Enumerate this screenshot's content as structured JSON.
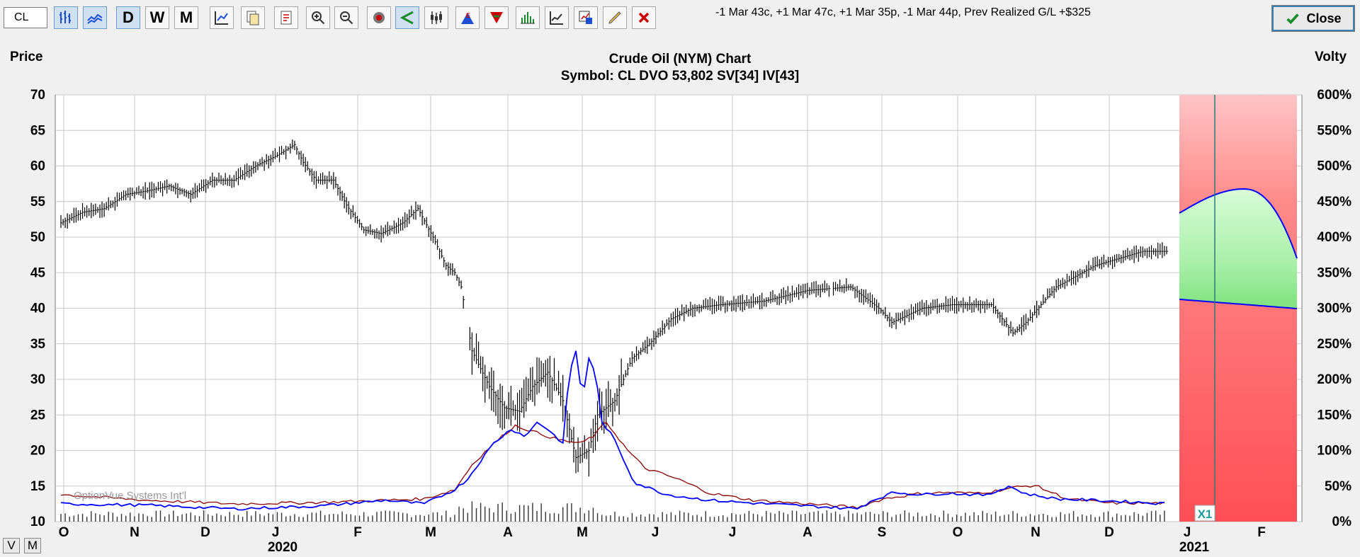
{
  "toolbar": {
    "symbol_value": "CL",
    "period_buttons": [
      "D",
      "W",
      "M"
    ],
    "status_text": "-1 Mar 43c, +1 Mar 47c, +1 Mar 35p, -1 Mar 44p, Prev Realized G/L +$325",
    "close_label": "Close",
    "icons": [
      "bar-chart-icon",
      "line-chart-icon",
      "daily-button",
      "weekly-button",
      "monthly-button",
      "chart-settings-icon",
      "copy-icon",
      "print-icon",
      "zoom-in-icon",
      "zoom-out-icon",
      "target-icon",
      "angle-icon",
      "candlestick-icon",
      "earnings-icon",
      "dividend-icon",
      "volume-icon",
      "indicator-icon",
      "analysis-icon",
      "pencil-icon",
      "delete-icon"
    ]
  },
  "chart": {
    "left_axis_title": "Price",
    "right_axis_title": "Volty",
    "title": "Crude Oil (NYM) Chart",
    "subtitle": "Symbol: CL  DVO 53,802  SV[34]  IV[43]",
    "watermark": "OptionVue Systems Int'l",
    "expiry_marker": "X1",
    "year_labels": [
      "2020",
      "2021"
    ],
    "colors": {
      "price": "#000000",
      "sv": "#0000ff",
      "iv": "#8b0000",
      "profit": "#b8f2b8",
      "loss": "#ff6b6b",
      "band": "#ffc8c8"
    }
  },
  "chart_data": {
    "type": "bar",
    "price_axis": {
      "ticks": [
        70,
        65,
        60,
        55,
        50,
        45,
        40,
        35,
        30,
        25,
        20,
        15,
        10
      ],
      "ylim": [
        10,
        70
      ]
    },
    "volty_axis": {
      "ticks": [
        "600%",
        "550%",
        "500%",
        "450%",
        "400%",
        "350%",
        "300%",
        "250%",
        "200%",
        "150%",
        "100%",
        "50%",
        "0%"
      ],
      "ylim": [
        0,
        600
      ]
    },
    "month_labels": [
      "O",
      "N",
      "D",
      "J",
      "F",
      "M",
      "A",
      "M",
      "J",
      "J",
      "A",
      "S",
      "O",
      "N",
      "D",
      "J",
      "F"
    ],
    "price_anchors": [
      [
        0,
        52
      ],
      [
        10,
        53.5
      ],
      [
        20,
        54
      ],
      [
        30,
        56
      ],
      [
        40,
        56.5
      ],
      [
        50,
        57.2
      ],
      [
        60,
        56
      ],
      [
        70,
        58
      ],
      [
        80,
        58
      ],
      [
        90,
        60
      ],
      [
        100,
        61.5
      ],
      [
        108,
        63
      ],
      [
        112,
        60.5
      ],
      [
        118,
        58
      ],
      [
        126,
        58
      ],
      [
        132,
        54.5
      ],
      [
        140,
        51
      ],
      [
        148,
        50.5
      ],
      [
        158,
        52
      ],
      [
        165,
        54
      ],
      [
        172,
        50
      ],
      [
        178,
        46
      ],
      [
        182,
        45
      ],
      [
        185,
        43
      ],
      [
        190,
        34
      ],
      [
        198,
        29
      ],
      [
        205,
        26
      ],
      [
        212,
        25.5
      ],
      [
        218,
        29
      ],
      [
        225,
        31
      ],
      [
        232,
        27
      ],
      [
        238,
        19
      ],
      [
        244,
        20
      ],
      [
        248,
        25
      ],
      [
        256,
        27
      ],
      [
        264,
        33
      ],
      [
        272,
        35
      ],
      [
        282,
        38.5
      ],
      [
        292,
        40
      ],
      [
        305,
        40.5
      ],
      [
        325,
        41
      ],
      [
        345,
        42.5
      ],
      [
        365,
        43
      ],
      [
        378,
        40
      ],
      [
        384,
        38
      ],
      [
        398,
        40
      ],
      [
        412,
        40.5
      ],
      [
        430,
        40.5
      ],
      [
        440,
        36.5
      ],
      [
        446,
        38
      ],
      [
        460,
        43
      ],
      [
        478,
        46
      ],
      [
        500,
        48
      ],
      [
        512,
        48
      ]
    ],
    "sv_anchors": [
      [
        0,
        12.5
      ],
      [
        40,
        12.3
      ],
      [
        80,
        11.8
      ],
      [
        120,
        12.2
      ],
      [
        150,
        13
      ],
      [
        168,
        12.5
      ],
      [
        182,
        14.5
      ],
      [
        188,
        16
      ],
      [
        195,
        19
      ],
      [
        200,
        21
      ],
      [
        208,
        23
      ],
      [
        215,
        22
      ],
      [
        220,
        24
      ],
      [
        225,
        23
      ],
      [
        232,
        21
      ],
      [
        235,
        31
      ],
      [
        238,
        34
      ],
      [
        241,
        27
      ],
      [
        244,
        33
      ],
      [
        247,
        31
      ],
      [
        250,
        24
      ],
      [
        255,
        22
      ],
      [
        265,
        15.5
      ],
      [
        280,
        13.8
      ],
      [
        300,
        13
      ],
      [
        320,
        12.6
      ],
      [
        345,
        12.2
      ],
      [
        368,
        11.8
      ],
      [
        375,
        13
      ],
      [
        385,
        14.1
      ],
      [
        398,
        13.8
      ],
      [
        410,
        14
      ],
      [
        428,
        13.7
      ],
      [
        438,
        15
      ],
      [
        446,
        13.9
      ],
      [
        460,
        13.2
      ],
      [
        478,
        13
      ],
      [
        500,
        12.7
      ],
      [
        512,
        12.5
      ]
    ],
    "iv_anchors": [
      [
        0,
        13.8
      ],
      [
        40,
        13
      ],
      [
        80,
        12.5
      ],
      [
        120,
        12.7
      ],
      [
        150,
        13
      ],
      [
        168,
        13.2
      ],
      [
        182,
        14.5
      ],
      [
        190,
        18
      ],
      [
        200,
        21
      ],
      [
        210,
        23.5
      ],
      [
        220,
        22.5
      ],
      [
        230,
        21.5
      ],
      [
        240,
        21
      ],
      [
        246,
        22
      ],
      [
        252,
        24
      ],
      [
        262,
        20
      ],
      [
        270,
        17.5
      ],
      [
        285,
        16
      ],
      [
        300,
        14
      ],
      [
        320,
        13
      ],
      [
        345,
        12.5
      ],
      [
        368,
        12
      ],
      [
        380,
        13.2
      ],
      [
        398,
        14
      ],
      [
        410,
        14.1
      ],
      [
        420,
        14
      ],
      [
        430,
        14.2
      ],
      [
        440,
        14.8
      ],
      [
        450,
        15.1
      ],
      [
        465,
        13.2
      ],
      [
        485,
        12.6
      ],
      [
        512,
        12.6
      ]
    ]
  }
}
